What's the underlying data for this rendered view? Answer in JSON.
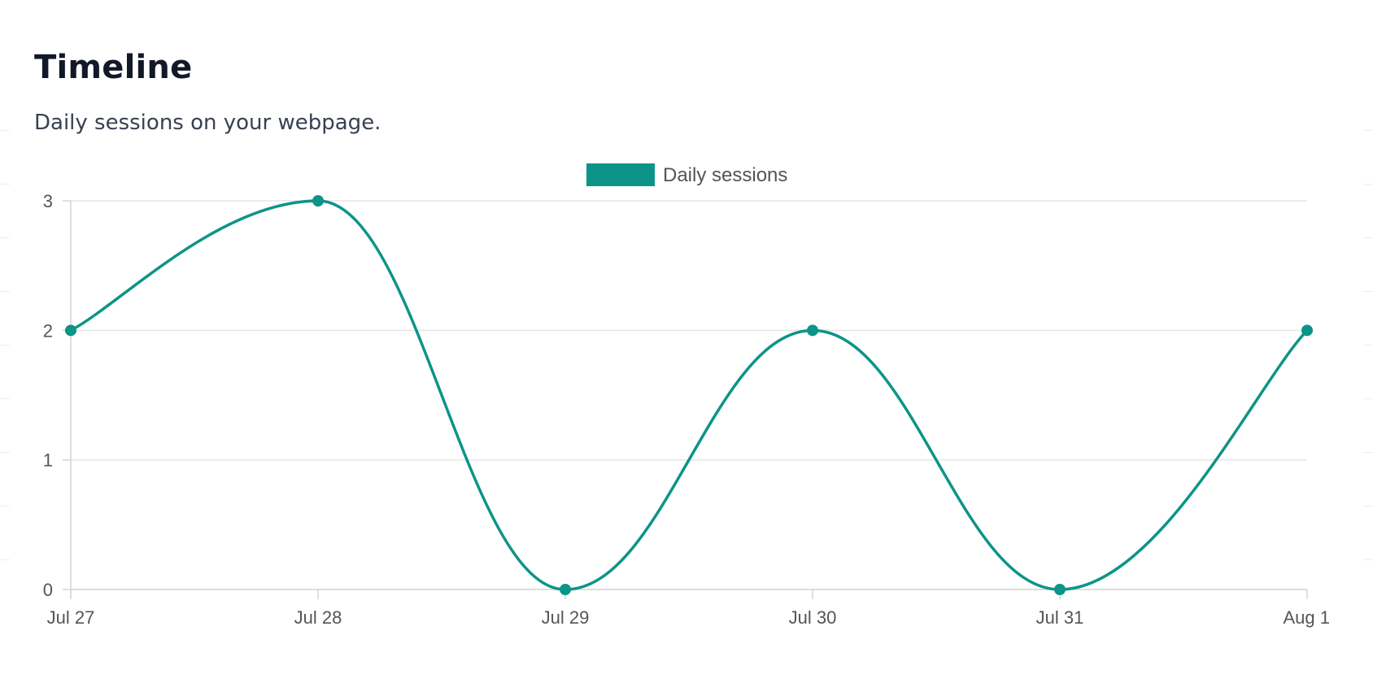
{
  "header": {
    "title": "Timeline",
    "subtitle": "Daily sessions on your webpage."
  },
  "colors": {
    "series": "#0d9488",
    "grid": "#e5e5e5",
    "axis": "#d4d4d4",
    "tick_text": "#555555"
  },
  "chart_data": {
    "type": "line",
    "title": "",
    "xlabel": "",
    "ylabel": "",
    "categories": [
      "Jul 27",
      "Jul 28",
      "Jul 29",
      "Jul 30",
      "Jul 31",
      "Aug 1"
    ],
    "series": [
      {
        "name": "Daily sessions",
        "values": [
          2,
          3,
          0,
          2,
          0,
          2
        ],
        "color": "#0d9488"
      }
    ],
    "y_ticks": [
      0,
      1,
      2,
      3
    ],
    "ylim": [
      0,
      3
    ],
    "grid": true,
    "smooth": true,
    "legend_position": "top-center"
  }
}
